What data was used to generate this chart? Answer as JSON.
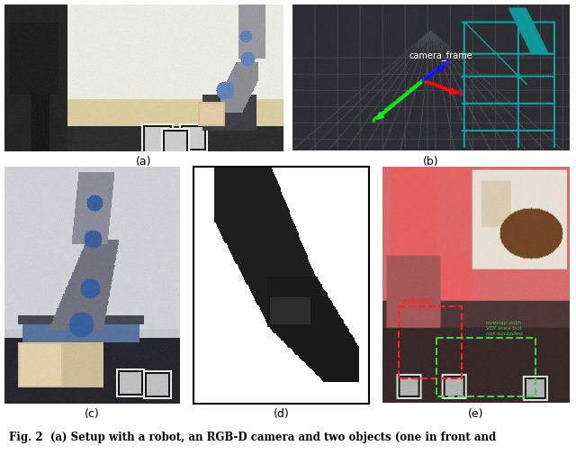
{
  "fig_width": 6.4,
  "fig_height": 5.05,
  "dpi": 100,
  "bg_color": "#ffffff",
  "caption": "Fig. 2  (a) Setup with a robot, an RGB-D camera and two objects (one in front and",
  "subplot_labels": [
    "(a)",
    "(b)",
    "(c)",
    "(d)",
    "(e)"
  ],
  "label_fontsize": 9,
  "caption_fontsize": 8.5,
  "panel_b_label": "camera_frame",
  "panel_e_ann1": "occluded",
  "panel_e_ann2": "overlap with\nVDI area but\nnot occluded",
  "ann1_color": "#ff2020",
  "ann2_color": "#30dd30"
}
